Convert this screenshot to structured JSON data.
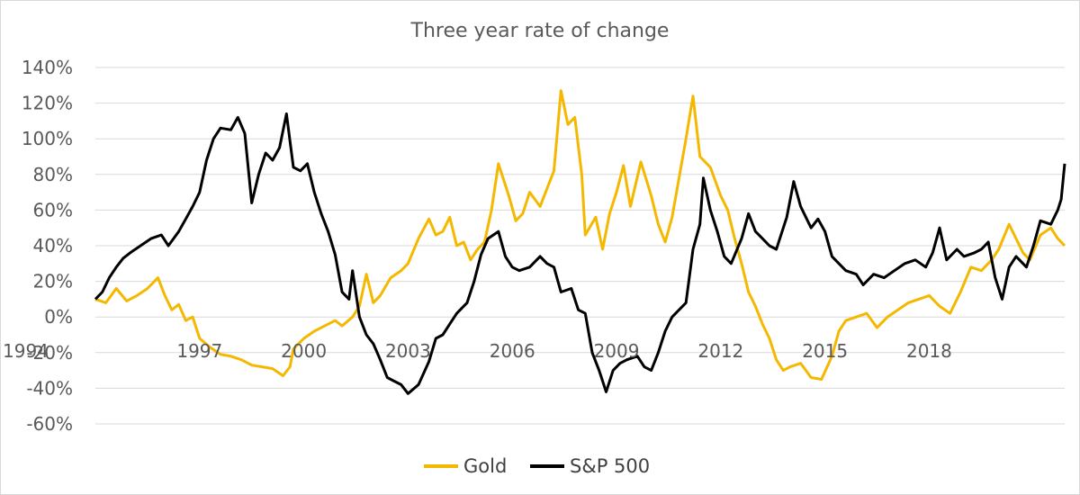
{
  "chart_data": {
    "type": "line",
    "title": "Three year rate of change",
    "xlabel": "",
    "ylabel": "",
    "x_range": [
      1994,
      2021.9
    ],
    "ylim": [
      -60,
      140
    ],
    "y_ticks": [
      140,
      120,
      100,
      80,
      60,
      40,
      20,
      0,
      -20,
      -40,
      -60
    ],
    "y_tick_labels": [
      "140%",
      "120%",
      "100%",
      "80%",
      "60%",
      "40%",
      "20%",
      "0%",
      "-20%",
      "-40%",
      "-60%"
    ],
    "x_ticks": [
      1994,
      1997,
      2000,
      2003,
      2006,
      2009,
      2012,
      2015,
      2018
    ],
    "x_tick_labels": [
      "1994",
      "1997",
      "2000",
      "2003",
      "2006",
      "2009",
      "2012",
      "2015",
      "2018"
    ],
    "grid": true,
    "legend_position": "bottom",
    "series": [
      {
        "name": "Gold",
        "color": "#f5b800",
        "points": [
          [
            1994.0,
            10
          ],
          [
            1994.3,
            8
          ],
          [
            1994.6,
            16
          ],
          [
            1994.9,
            9
          ],
          [
            1995.2,
            12
          ],
          [
            1995.5,
            16
          ],
          [
            1995.8,
            22
          ],
          [
            1996.0,
            12
          ],
          [
            1996.2,
            4
          ],
          [
            1996.4,
            7
          ],
          [
            1996.6,
            -2
          ],
          [
            1996.8,
            0
          ],
          [
            1997.0,
            -12
          ],
          [
            1997.3,
            -17
          ],
          [
            1997.6,
            -21
          ],
          [
            1997.9,
            -22
          ],
          [
            1998.2,
            -24
          ],
          [
            1998.5,
            -27
          ],
          [
            1998.8,
            -28
          ],
          [
            1999.1,
            -29
          ],
          [
            1999.4,
            -33
          ],
          [
            1999.6,
            -28
          ],
          [
            1999.7,
            -18
          ],
          [
            2000.0,
            -12
          ],
          [
            2000.3,
            -8
          ],
          [
            2000.6,
            -5
          ],
          [
            2000.9,
            -2
          ],
          [
            2001.1,
            -5
          ],
          [
            2001.4,
            0
          ],
          [
            2001.6,
            6
          ],
          [
            2001.8,
            24
          ],
          [
            2002.0,
            8
          ],
          [
            2002.2,
            12
          ],
          [
            2002.5,
            22
          ],
          [
            2002.8,
            26
          ],
          [
            2003.0,
            30
          ],
          [
            2003.3,
            44
          ],
          [
            2003.6,
            55
          ],
          [
            2003.8,
            46
          ],
          [
            2004.0,
            48
          ],
          [
            2004.2,
            56
          ],
          [
            2004.4,
            40
          ],
          [
            2004.6,
            42
          ],
          [
            2004.8,
            32
          ],
          [
            2005.0,
            38
          ],
          [
            2005.2,
            42
          ],
          [
            2005.4,
            60
          ],
          [
            2005.6,
            86
          ],
          [
            2005.9,
            68
          ],
          [
            2006.1,
            54
          ],
          [
            2006.3,
            58
          ],
          [
            2006.5,
            70
          ],
          [
            2006.8,
            62
          ],
          [
            2007.0,
            72
          ],
          [
            2007.2,
            82
          ],
          [
            2007.4,
            127
          ],
          [
            2007.6,
            108
          ],
          [
            2007.8,
            112
          ],
          [
            2008.0,
            80
          ],
          [
            2008.1,
            46
          ],
          [
            2008.4,
            56
          ],
          [
            2008.6,
            38
          ],
          [
            2008.8,
            58
          ],
          [
            2009.0,
            70
          ],
          [
            2009.2,
            85
          ],
          [
            2009.4,
            62
          ],
          [
            2009.7,
            87
          ],
          [
            2010.0,
            68
          ],
          [
            2010.2,
            52
          ],
          [
            2010.4,
            42
          ],
          [
            2010.6,
            56
          ],
          [
            2010.8,
            78
          ],
          [
            2011.0,
            100
          ],
          [
            2011.2,
            124
          ],
          [
            2011.4,
            90
          ],
          [
            2011.7,
            84
          ],
          [
            2012.0,
            68
          ],
          [
            2012.2,
            60
          ],
          [
            2012.4,
            44
          ],
          [
            2012.6,
            30
          ],
          [
            2012.8,
            14
          ],
          [
            2013.0,
            6
          ],
          [
            2013.2,
            -4
          ],
          [
            2013.4,
            -12
          ],
          [
            2013.6,
            -24
          ],
          [
            2013.8,
            -30
          ],
          [
            2014.0,
            -28
          ],
          [
            2014.3,
            -26
          ],
          [
            2014.6,
            -34
          ],
          [
            2014.9,
            -35
          ],
          [
            2015.2,
            -22
          ],
          [
            2015.4,
            -8
          ],
          [
            2015.6,
            -2
          ],
          [
            2015.9,
            0
          ],
          [
            2016.2,
            2
          ],
          [
            2016.5,
            -6
          ],
          [
            2016.8,
            0
          ],
          [
            2017.1,
            4
          ],
          [
            2017.4,
            8
          ],
          [
            2017.7,
            10
          ],
          [
            2018.0,
            12
          ],
          [
            2018.3,
            6
          ],
          [
            2018.6,
            2
          ],
          [
            2018.9,
            14
          ],
          [
            2019.2,
            28
          ],
          [
            2019.5,
            26
          ],
          [
            2019.8,
            32
          ],
          [
            2020.0,
            38
          ],
          [
            2020.3,
            52
          ],
          [
            2020.5,
            44
          ],
          [
            2020.7,
            36
          ],
          [
            2020.9,
            32
          ],
          [
            2021.2,
            46
          ],
          [
            2021.5,
            50
          ],
          [
            2021.7,
            44
          ],
          [
            2021.9,
            40
          ]
        ]
      },
      {
        "name": "S&P 500",
        "color": "#000000",
        "points": [
          [
            1994.0,
            10
          ],
          [
            1994.2,
            14
          ],
          [
            1994.4,
            22
          ],
          [
            1994.6,
            28
          ],
          [
            1994.8,
            33
          ],
          [
            1995.0,
            36
          ],
          [
            1995.3,
            40
          ],
          [
            1995.6,
            44
          ],
          [
            1995.9,
            46
          ],
          [
            1996.1,
            40
          ],
          [
            1996.4,
            48
          ],
          [
            1996.6,
            55
          ],
          [
            1996.8,
            62
          ],
          [
            1997.0,
            70
          ],
          [
            1997.2,
            88
          ],
          [
            1997.4,
            100
          ],
          [
            1997.6,
            106
          ],
          [
            1997.9,
            105
          ],
          [
            1998.1,
            112
          ],
          [
            1998.3,
            103
          ],
          [
            1998.5,
            64
          ],
          [
            1998.7,
            80
          ],
          [
            1998.9,
            92
          ],
          [
            1999.1,
            88
          ],
          [
            1999.3,
            95
          ],
          [
            1999.5,
            114
          ],
          [
            1999.7,
            84
          ],
          [
            1999.9,
            82
          ],
          [
            2000.1,
            86
          ],
          [
            2000.3,
            70
          ],
          [
            2000.5,
            58
          ],
          [
            2000.7,
            48
          ],
          [
            2000.9,
            35
          ],
          [
            2001.1,
            14
          ],
          [
            2001.3,
            10
          ],
          [
            2001.4,
            26
          ],
          [
            2001.6,
            0
          ],
          [
            2001.8,
            -10
          ],
          [
            2002.0,
            -15
          ],
          [
            2002.2,
            -24
          ],
          [
            2002.4,
            -34
          ],
          [
            2002.6,
            -36
          ],
          [
            2002.8,
            -38
          ],
          [
            2003.0,
            -43
          ],
          [
            2003.3,
            -38
          ],
          [
            2003.6,
            -25
          ],
          [
            2003.8,
            -12
          ],
          [
            2004.0,
            -10
          ],
          [
            2004.2,
            -4
          ],
          [
            2004.4,
            2
          ],
          [
            2004.7,
            8
          ],
          [
            2004.9,
            20
          ],
          [
            2005.1,
            35
          ],
          [
            2005.3,
            44
          ],
          [
            2005.6,
            48
          ],
          [
            2005.8,
            34
          ],
          [
            2006.0,
            28
          ],
          [
            2006.2,
            26
          ],
          [
            2006.5,
            28
          ],
          [
            2006.8,
            34
          ],
          [
            2007.0,
            30
          ],
          [
            2007.2,
            28
          ],
          [
            2007.4,
            14
          ],
          [
            2007.7,
            16
          ],
          [
            2007.9,
            4
          ],
          [
            2008.1,
            2
          ],
          [
            2008.3,
            -20
          ],
          [
            2008.5,
            -30
          ],
          [
            2008.7,
            -42
          ],
          [
            2008.9,
            -30
          ],
          [
            2009.1,
            -26
          ],
          [
            2009.3,
            -24
          ],
          [
            2009.6,
            -22
          ],
          [
            2009.8,
            -28
          ],
          [
            2010.0,
            -30
          ],
          [
            2010.2,
            -20
          ],
          [
            2010.4,
            -8
          ],
          [
            2010.6,
            0
          ],
          [
            2010.8,
            4
          ],
          [
            2011.0,
            8
          ],
          [
            2011.2,
            38
          ],
          [
            2011.4,
            52
          ],
          [
            2011.5,
            78
          ],
          [
            2011.7,
            60
          ],
          [
            2011.9,
            48
          ],
          [
            2012.1,
            34
          ],
          [
            2012.3,
            30
          ],
          [
            2012.6,
            44
          ],
          [
            2012.8,
            58
          ],
          [
            2013.0,
            48
          ],
          [
            2013.2,
            44
          ],
          [
            2013.4,
            40
          ],
          [
            2013.6,
            38
          ],
          [
            2013.9,
            56
          ],
          [
            2014.1,
            76
          ],
          [
            2014.3,
            62
          ],
          [
            2014.6,
            50
          ],
          [
            2014.8,
            55
          ],
          [
            2015.0,
            48
          ],
          [
            2015.2,
            34
          ],
          [
            2015.4,
            30
          ],
          [
            2015.6,
            26
          ],
          [
            2015.9,
            24
          ],
          [
            2016.1,
            18
          ],
          [
            2016.4,
            24
          ],
          [
            2016.7,
            22
          ],
          [
            2017.0,
            26
          ],
          [
            2017.3,
            30
          ],
          [
            2017.6,
            32
          ],
          [
            2017.9,
            28
          ],
          [
            2018.1,
            36
          ],
          [
            2018.3,
            50
          ],
          [
            2018.5,
            32
          ],
          [
            2018.8,
            38
          ],
          [
            2019.0,
            34
          ],
          [
            2019.3,
            36
          ],
          [
            2019.5,
            38
          ],
          [
            2019.7,
            42
          ],
          [
            2019.9,
            22
          ],
          [
            2020.1,
            10
          ],
          [
            2020.3,
            28
          ],
          [
            2020.5,
            34
          ],
          [
            2020.8,
            28
          ],
          [
            2021.0,
            40
          ],
          [
            2021.2,
            54
          ],
          [
            2021.5,
            52
          ],
          [
            2021.7,
            60
          ],
          [
            2021.8,
            66
          ],
          [
            2021.9,
            86
          ]
        ]
      }
    ]
  }
}
